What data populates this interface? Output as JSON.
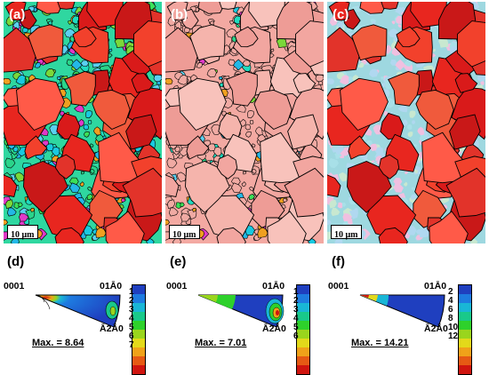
{
  "panels": [
    {
      "label": "(a)",
      "scale": "10 μm",
      "mode": "grains-all"
    },
    {
      "label": "(b)",
      "scale": "10 μm",
      "mode": "grains-coarse"
    },
    {
      "label": "(c)",
      "scale": "10 μm",
      "mode": "grains-coarse-bright"
    }
  ],
  "ipfs": [
    {
      "label": "(d)",
      "dir_left": "0001",
      "dir_right": "01Ā0",
      "dir_bottom": "Ā2Ā0",
      "max": "Max. = 8.64",
      "ticks": [
        "1",
        "2",
        "3",
        "4",
        "5",
        "6",
        "7"
      ]
    },
    {
      "label": "(e)",
      "dir_left": "0001",
      "dir_right": "01Ā0",
      "dir_bottom": "Ā2Ā0",
      "max": "Max. = 7.01",
      "ticks": [
        "1",
        "2",
        "3",
        "4",
        "5",
        "6"
      ]
    },
    {
      "label": "(f)",
      "dir_left": "0001",
      "dir_right": "01Ā0",
      "dir_bottom": "Ā2Ā0",
      "max": "Max. = 14.21",
      "ticks": [
        "2",
        "4",
        "6",
        "8",
        "10",
        "12"
      ]
    }
  ],
  "colorbar": [
    "#1f3fbf",
    "#1e7be0",
    "#19b6d6",
    "#19c98a",
    "#2ed12b",
    "#9ad51d",
    "#e3d91a",
    "#f0a219",
    "#e65a14",
    "#d0150f"
  ]
}
